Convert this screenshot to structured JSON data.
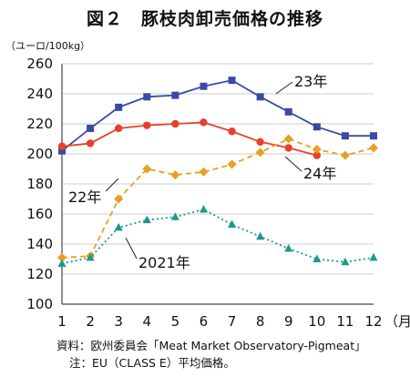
{
  "chart_data": {
    "type": "line",
    "title": "図２　豚枝肉卸売価格の推移",
    "ylabel": "（ユーロ/100kg）",
    "xlabel": "（月）",
    "ylim": [
      100,
      260
    ],
    "yticks": [
      100,
      120,
      140,
      160,
      180,
      200,
      220,
      240,
      260
    ],
    "x": [
      1,
      2,
      3,
      4,
      5,
      6,
      7,
      8,
      9,
      10,
      11,
      12
    ],
    "grid": true,
    "series": [
      {
        "name": "23年",
        "color": "#3a4aa6",
        "dash": "",
        "marker": "square",
        "values": [
          202,
          217,
          231,
          238,
          239,
          245,
          249,
          238,
          228,
          218,
          212,
          212
        ]
      },
      {
        "name": "24年",
        "color": "#e8402a",
        "dash": "",
        "marker": "circle",
        "values": [
          205,
          207,
          217,
          219,
          220,
          221,
          215,
          208,
          204,
          199,
          null,
          null
        ]
      },
      {
        "name": "22年",
        "color": "#e8a020",
        "dash": "6,4",
        "marker": "diamond",
        "values": [
          131,
          132,
          170,
          190,
          186,
          188,
          193,
          201,
          210,
          203,
          199,
          204
        ]
      },
      {
        "name": "2021年",
        "color": "#1a9a8a",
        "dash": "2,3",
        "marker": "triangle",
        "values": [
          127,
          131,
          151,
          156,
          158,
          163,
          153,
          145,
          137,
          130,
          128,
          131
        ]
      }
    ],
    "annotations": [
      "23年",
      "24年",
      "22年",
      "2021年"
    ]
  },
  "notes": {
    "line1": "資料：欧州委員会「Meat Market Observatory-Pigmeat」",
    "line2": "注：EU（CLASS E）平均価格。"
  }
}
